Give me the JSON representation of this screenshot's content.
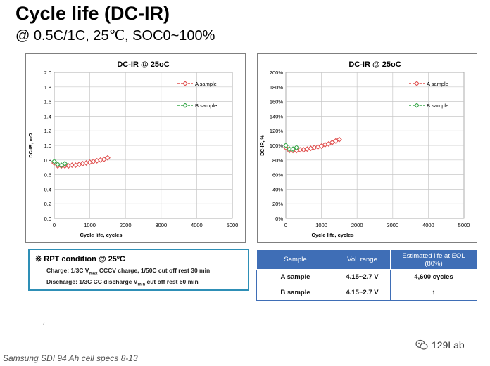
{
  "header": {
    "title": "Cycle life (DC-IR)",
    "subtitle": "@ 0.5C/1C, 25℃, SOC0~100%"
  },
  "chart_data": [
    {
      "type": "scatter",
      "title": "DC-IR @ 25oC",
      "xlabel": "Cycle life, cycles",
      "ylabel": "DC-IR, mΩ",
      "xlim": [
        0,
        5000
      ],
      "ylim": [
        0.0,
        2.0
      ],
      "xticks": [
        "0",
        "1000",
        "2000",
        "3000",
        "4000",
        "5000"
      ],
      "yticks": [
        "0.0",
        "0.2",
        "0.4",
        "0.6",
        "0.8",
        "1.0",
        "1.2",
        "1.4",
        "1.6",
        "1.8",
        "2.0"
      ],
      "grid": true,
      "legend": "inside-top",
      "series": [
        {
          "name": "A sample",
          "color": "#e0504f",
          "x": [
            0,
            100,
            200,
            300,
            400,
            500,
            600,
            700,
            800,
            900,
            1000,
            1100,
            1200,
            1300,
            1400,
            1500
          ],
          "y": [
            0.76,
            0.72,
            0.72,
            0.72,
            0.72,
            0.73,
            0.73,
            0.74,
            0.75,
            0.76,
            0.77,
            0.78,
            0.79,
            0.8,
            0.81,
            0.83
          ]
        },
        {
          "name": "B sample",
          "color": "#3aa84b",
          "x": [
            0,
            100,
            200,
            300
          ],
          "y": [
            0.78,
            0.74,
            0.73,
            0.75
          ]
        }
      ]
    },
    {
      "type": "scatter",
      "title": "DC-IR @ 25oC",
      "xlabel": "Cycle life, cycles",
      "ylabel": "DC-IR, %",
      "xlim": [
        0,
        5000
      ],
      "ylim": [
        0,
        200
      ],
      "xticks": [
        "0",
        "1000",
        "2000",
        "3000",
        "4000",
        "5000"
      ],
      "yticks": [
        "0%",
        "20%",
        "40%",
        "60%",
        "80%",
        "100%",
        "120%",
        "140%",
        "160%",
        "180%",
        "200%"
      ],
      "grid": true,
      "legend": "inside-top",
      "series": [
        {
          "name": "A sample",
          "color": "#e0504f",
          "x": [
            0,
            100,
            200,
            300,
            400,
            500,
            600,
            700,
            800,
            900,
            1000,
            1100,
            1200,
            1300,
            1400,
            1500
          ],
          "y": [
            97,
            93,
            93,
            93,
            94,
            94,
            95,
            96,
            97,
            98,
            99,
            101,
            102,
            104,
            106,
            108
          ]
        },
        {
          "name": "B sample",
          "color": "#3aa84b",
          "x": [
            0,
            100,
            200,
            300
          ],
          "y": [
            100,
            95,
            95,
            97
          ]
        }
      ]
    }
  ],
  "rpt": {
    "heading": "※ RPT condition @ 25ºC",
    "charge_a": "Charge: 1/3C V",
    "charge_sub": "max",
    "charge_b": " CCCV charge, 1/50C cut off rest 30 min",
    "discharge_a": "Discharge: 1/3C CC discharge V",
    "discharge_sub": "min",
    "discharge_b": " cut off   rest 60 min"
  },
  "table": {
    "headers": [
      "Sample",
      "Vol. range",
      "Estimated life at EOL (80%)"
    ],
    "rows": [
      [
        "A sample",
        "4.15~2.7 V",
        "4,600 cycles"
      ],
      [
        "B sample",
        "4.15~2.7 V",
        "↑"
      ]
    ]
  },
  "footer": {
    "page_number": "7",
    "source": "Samsung SDI 94 Ah cell specs 8-13",
    "brand": "129Lab"
  }
}
